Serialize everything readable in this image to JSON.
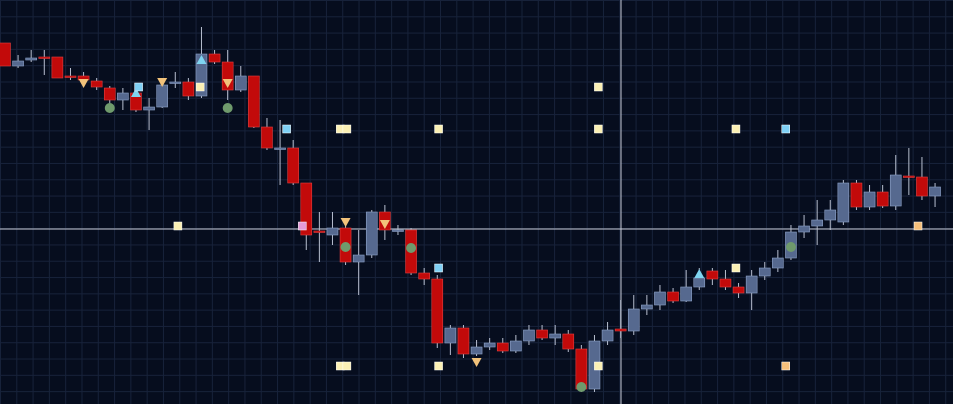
{
  "chart_data": {
    "type": "candlestick",
    "open": [
      361,
      338,
      344,
      347,
      347,
      328,
      328,
      323,
      316,
      304,
      311,
      294,
      297,
      322,
      322,
      308,
      350,
      342,
      314,
      328,
      277,
      256,
      256,
      221,
      173,
      169,
      176,
      142,
      149,
      192,
      174,
      174,
      131,
      125,
      61,
      76,
      50,
      57,
      61,
      53,
      63,
      74,
      66,
      70,
      55,
      15,
      63,
      75,
      73,
      95,
      99,
      112,
      103,
      117,
      133,
      125,
      117,
      111,
      128,
      136,
      146,
      172,
      178,
      184,
      182,
      221,
      197,
      212,
      198,
      228,
      227,
      208
    ],
    "high": [
      361,
      349,
      354,
      354,
      347,
      336,
      332,
      326,
      318,
      316,
      319,
      306,
      324,
      332,
      326,
      377,
      354,
      354,
      338,
      328,
      286,
      284,
      264,
      221,
      192,
      192,
      182,
      174,
      194,
      199,
      179,
      176,
      136,
      129,
      79,
      79,
      64,
      66,
      66,
      69,
      79,
      79,
      79,
      74,
      59,
      69,
      82,
      104,
      109,
      109,
      119,
      116,
      134,
      136,
      136,
      134,
      121,
      134,
      142,
      154,
      179,
      189,
      204,
      204,
      224,
      224,
      219,
      219,
      249,
      256,
      247,
      221
    ],
    "low": [
      338,
      336,
      342,
      329,
      326,
      324,
      320,
      314,
      300,
      294,
      292,
      274,
      296,
      316,
      304,
      306,
      340,
      304,
      312,
      276,
      254,
      219,
      219,
      154,
      142,
      159,
      139,
      109,
      146,
      164,
      169,
      129,
      119,
      56,
      49,
      46,
      48,
      54,
      51,
      51,
      59,
      64,
      59,
      52,
      12,
      12,
      59,
      66,
      69,
      89,
      94,
      101,
      102,
      114,
      119,
      114,
      106,
      94,
      124,
      132,
      144,
      166,
      159,
      174,
      179,
      194,
      194,
      196,
      194,
      209,
      204,
      197
    ],
    "close": [
      338,
      343,
      346,
      346,
      326,
      327,
      324,
      317,
      304,
      311,
      294,
      297,
      319,
      322,
      308,
      350,
      342,
      314,
      328,
      277,
      256,
      256,
      221,
      169,
      172,
      176,
      142,
      149,
      192,
      174,
      174,
      131,
      125,
      61,
      76,
      50,
      57,
      61,
      53,
      63,
      74,
      66,
      70,
      55,
      15,
      63,
      74,
      73,
      95,
      99,
      112,
      103,
      117,
      126,
      125,
      117,
      111,
      128,
      136,
      146,
      172,
      178,
      184,
      194,
      221,
      197,
      212,
      198,
      229,
      227,
      208,
      217
    ],
    "up_color": "#56698f",
    "down_color": "#c20a0a",
    "xlim": [
      -0.38,
      72.37
    ],
    "ylim": [
      0,
      404
    ],
    "signals": [
      {
        "shape": "circle",
        "color": "#6f9a6c",
        "x": [
          8,
          17,
          26,
          31,
          44,
          60
        ],
        "values": [
          296,
          296,
          157,
          156,
          17,
          157
        ]
      },
      {
        "shape": "triangle-down",
        "color": "#f2c27a",
        "x": [
          6,
          12,
          17,
          26,
          29,
          36
        ],
        "values": [
          321,
          322,
          321,
          182,
          180,
          42
        ]
      },
      {
        "shape": "triangle-up",
        "color": "#7fd4f0",
        "x": [
          10,
          15,
          53
        ],
        "values": [
          311,
          344,
          130
        ]
      },
      {
        "shape": "square",
        "color": "#fbf0b4",
        "x": [
          13.2,
          25.6,
          26.1,
          33.1,
          45.3,
          55.8,
          25.6,
          26.1,
          33.1,
          45.3,
          55.8,
          45.3,
          14.9
        ],
        "values": [
          178,
          275,
          275,
          275,
          275,
          275,
          38,
          38,
          38,
          38,
          136,
          317,
          317
        ]
      },
      {
        "shape": "square",
        "color": "#7fd0f5",
        "x": [
          21.5,
          59.6,
          33.1,
          10.2
        ],
        "values": [
          275,
          275,
          136,
          317
        ]
      },
      {
        "shape": "square",
        "color": "#f5bf7a",
        "x": [
          69.7,
          59.6
        ],
        "values": [
          178,
          38
        ]
      },
      {
        "shape": "square",
        "color": "#e59ad8",
        "x": [
          22.7
        ],
        "values": [
          178
        ]
      }
    ]
  }
}
